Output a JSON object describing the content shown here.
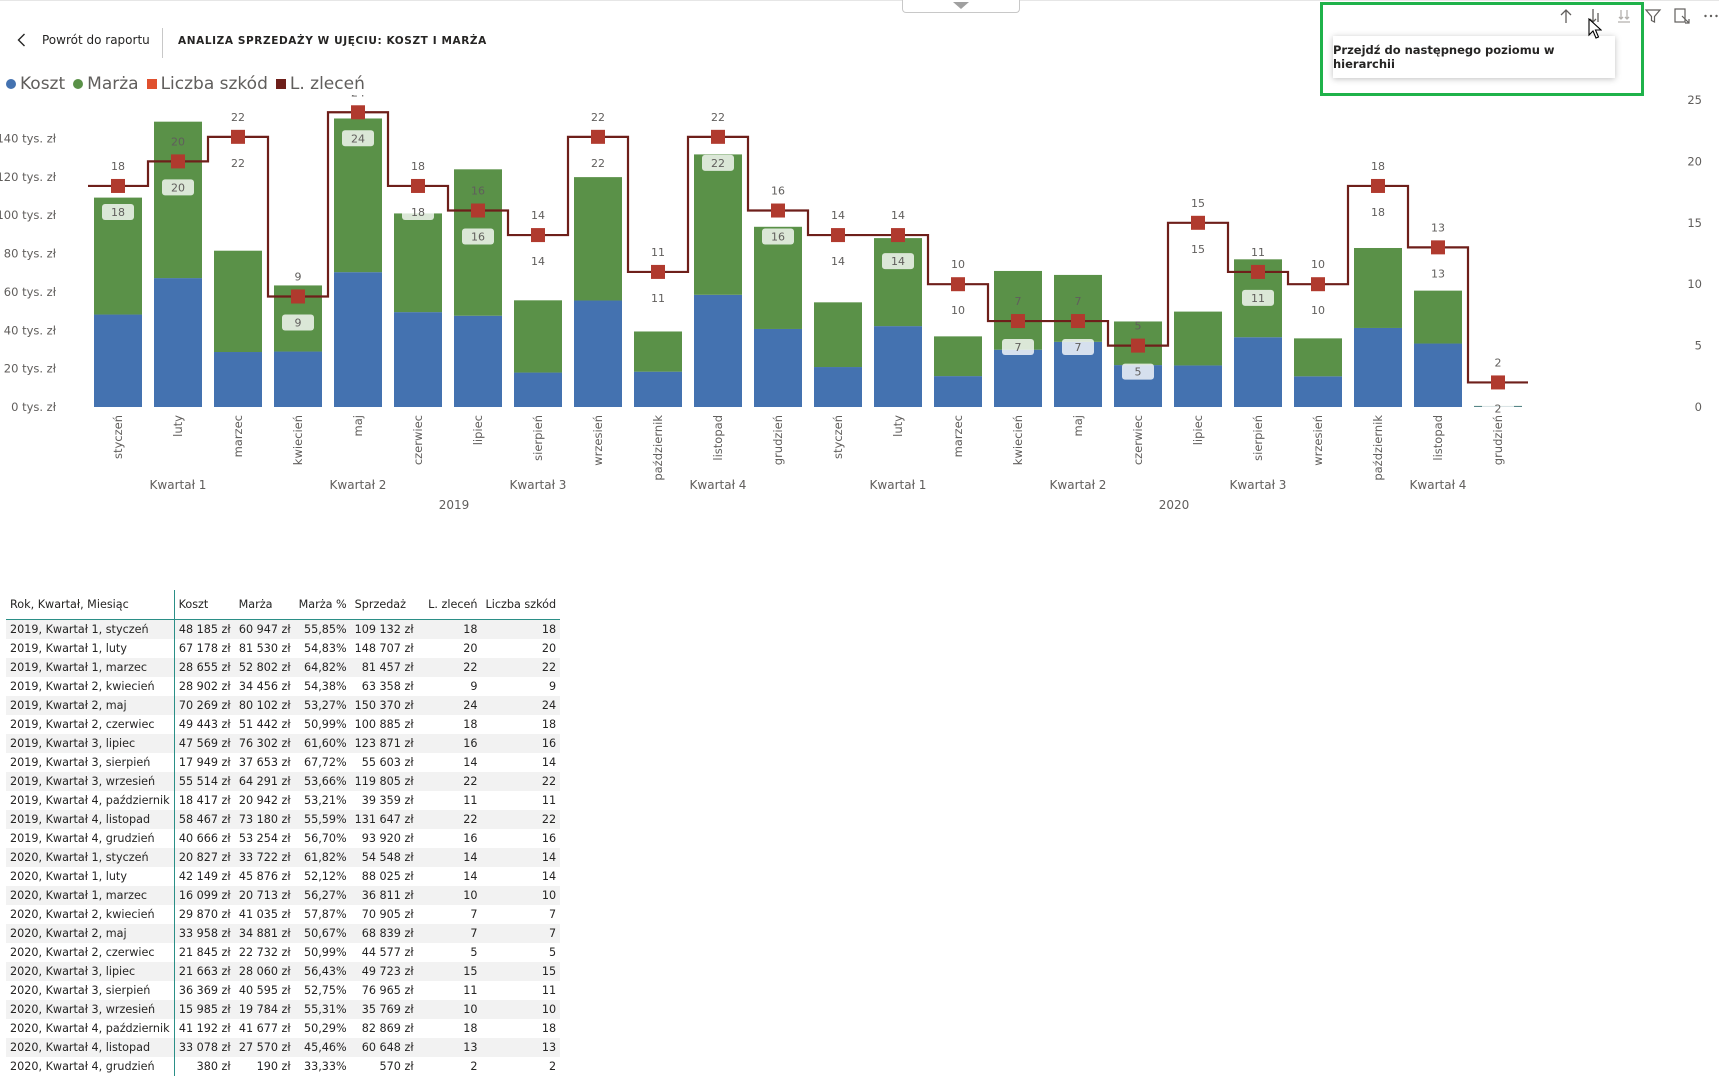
{
  "header": {
    "back_label": "Powrót do raportu",
    "title": "ANALIZA SPRZEDAŻY W UJĘCIU: KOSZT I MARŻA"
  },
  "legend": [
    {
      "label": "Koszt",
      "color": "#4472b0",
      "shape": "circle"
    },
    {
      "label": "Marża",
      "color": "#5a9148",
      "shape": "circle"
    },
    {
      "label": "Liczba szkód",
      "color": "#e0502e",
      "shape": "square"
    },
    {
      "label": "L. zleceń",
      "color": "#6e1f1a",
      "shape": "square"
    }
  ],
  "visual_header": {
    "tooltip": "Przejdź do następnego poziomu w hierarchii",
    "icons": [
      "drill-up-icon",
      "drill-down-icon",
      "expand-hierarchy-icon",
      "filter-icon",
      "focus-mode-icon",
      "more-options-icon"
    ]
  },
  "chart_data": {
    "type": "bar",
    "stacked": true,
    "categories": [
      "styczeń",
      "luty",
      "marzec",
      "kwiecień",
      "maj",
      "czerwiec",
      "lipiec",
      "sierpień",
      "wrzesień",
      "październik",
      "listopad",
      "grudzień",
      "styczeń",
      "luty",
      "marzec",
      "kwiecień",
      "maj",
      "czerwiec",
      "lipiec",
      "sierpień",
      "wrzesień",
      "październik",
      "listopad",
      "grudzień"
    ],
    "quarter_labels": [
      "Kwartał 1",
      "Kwartał 2",
      "Kwartał 3",
      "Kwartał 4",
      "Kwartał 1",
      "Kwartał 2",
      "Kwartał 3",
      "Kwartał 4"
    ],
    "year_labels": [
      "2019",
      "2020"
    ],
    "series": [
      {
        "name": "Koszt",
        "color": "#4472b0",
        "values": [
          48185,
          67178,
          28655,
          28902,
          70269,
          49443,
          47569,
          17949,
          55514,
          18417,
          58467,
          40666,
          20827,
          42149,
          16099,
          29870,
          33958,
          21845,
          21663,
          36369,
          15985,
          41192,
          33078,
          380
        ]
      },
      {
        "name": "Marża",
        "color": "#5a9148",
        "values": [
          60947,
          81530,
          52802,
          34456,
          80102,
          51442,
          76302,
          37653,
          64291,
          20942,
          73180,
          53254,
          33722,
          45876,
          20713,
          41035,
          34881,
          22732,
          28060,
          40595,
          19784,
          41677,
          27570,
          190
        ]
      },
      {
        "name": "L. zleceń",
        "type": "step-line",
        "axis": "right",
        "color": "#6e1f1a",
        "marker_color": "#b03a2e",
        "values": [
          18,
          20,
          22,
          9,
          24,
          18,
          16,
          14,
          22,
          11,
          22,
          16,
          14,
          14,
          10,
          7,
          7,
          5,
          15,
          11,
          10,
          18,
          13,
          2
        ]
      },
      {
        "name": "Liczba szkód",
        "type": "labels",
        "axis": "right",
        "color": "#e0502e",
        "values": [
          18,
          20,
          22,
          9,
          24,
          18,
          16,
          14,
          22,
          11,
          22,
          16,
          14,
          14,
          10,
          7,
          7,
          5,
          15,
          11,
          10,
          18,
          13,
          2
        ]
      }
    ],
    "y_left_ticks": [
      "0 tys. zł",
      "20 tys. zł",
      "40 tys. zł",
      "60 tys. zł",
      "80 tys. zł",
      "100 tys. zł",
      "120 tys. zł",
      "140 tys. zł"
    ],
    "y_left_range": [
      0,
      160000
    ],
    "y_right_ticks": [
      "0",
      "5",
      "10",
      "15",
      "20",
      "25"
    ],
    "y_right_range": [
      0,
      25
    ],
    "grid": false,
    "legend_position": "top-left"
  },
  "table": {
    "columns": [
      "Rok, Kwartał, Miesiąc",
      "Koszt",
      "Marża",
      "Marża %",
      "Sprzedaż",
      "L. zleceń",
      "Liczba szkód"
    ],
    "rows": [
      [
        "2019, Kwartał 1, styczeń",
        "48 185 zł",
        "60 947 zł",
        "55,85%",
        "109 132 zł",
        "18",
        "18"
      ],
      [
        "2019, Kwartał 1, luty",
        "67 178 zł",
        "81 530 zł",
        "54,83%",
        "148 707 zł",
        "20",
        "20"
      ],
      [
        "2019, Kwartał 1, marzec",
        "28 655 zł",
        "52 802 zł",
        "64,82%",
        "81 457 zł",
        "22",
        "22"
      ],
      [
        "2019, Kwartał 2, kwiecień",
        "28 902 zł",
        "34 456 zł",
        "54,38%",
        "63 358 zł",
        "9",
        "9"
      ],
      [
        "2019, Kwartał 2, maj",
        "70 269 zł",
        "80 102 zł",
        "53,27%",
        "150 370 zł",
        "24",
        "24"
      ],
      [
        "2019, Kwartał 2, czerwiec",
        "49 443 zł",
        "51 442 zł",
        "50,99%",
        "100 885 zł",
        "18",
        "18"
      ],
      [
        "2019, Kwartał 3, lipiec",
        "47 569 zł",
        "76 302 zł",
        "61,60%",
        "123 871 zł",
        "16",
        "16"
      ],
      [
        "2019, Kwartał 3, sierpień",
        "17 949 zł",
        "37 653 zł",
        "67,72%",
        "55 603 zł",
        "14",
        "14"
      ],
      [
        "2019, Kwartał 3, wrzesień",
        "55 514 zł",
        "64 291 zł",
        "53,66%",
        "119 805 zł",
        "22",
        "22"
      ],
      [
        "2019, Kwartał 4, październik",
        "18 417 zł",
        "20 942 zł",
        "53,21%",
        "39 359 zł",
        "11",
        "11"
      ],
      [
        "2019, Kwartał 4, listopad",
        "58 467 zł",
        "73 180 zł",
        "55,59%",
        "131 647 zł",
        "22",
        "22"
      ],
      [
        "2019, Kwartał 4, grudzień",
        "40 666 zł",
        "53 254 zł",
        "56,70%",
        "93 920 zł",
        "16",
        "16"
      ],
      [
        "2020, Kwartał 1, styczeń",
        "20 827 zł",
        "33 722 zł",
        "61,82%",
        "54 548 zł",
        "14",
        "14"
      ],
      [
        "2020, Kwartał 1, luty",
        "42 149 zł",
        "45 876 zł",
        "52,12%",
        "88 025 zł",
        "14",
        "14"
      ],
      [
        "2020, Kwartał 1, marzec",
        "16 099 zł",
        "20 713 zł",
        "56,27%",
        "36 811 zł",
        "10",
        "10"
      ],
      [
        "2020, Kwartał 2, kwiecień",
        "29 870 zł",
        "41 035 zł",
        "57,87%",
        "70 905 zł",
        "7",
        "7"
      ],
      [
        "2020, Kwartał 2, maj",
        "33 958 zł",
        "34 881 zł",
        "50,67%",
        "68 839 zł",
        "7",
        "7"
      ],
      [
        "2020, Kwartał 2, czerwiec",
        "21 845 zł",
        "22 732 zł",
        "50,99%",
        "44 577 zł",
        "5",
        "5"
      ],
      [
        "2020, Kwartał 3, lipiec",
        "21 663 zł",
        "28 060 zł",
        "56,43%",
        "49 723 zł",
        "15",
        "15"
      ],
      [
        "2020, Kwartał 3, sierpień",
        "36 369 zł",
        "40 595 zł",
        "52,75%",
        "76 965 zł",
        "11",
        "11"
      ],
      [
        "2020, Kwartał 3, wrzesień",
        "15 985 zł",
        "19 784 zł",
        "55,31%",
        "35 769 zł",
        "10",
        "10"
      ],
      [
        "2020, Kwartał 4, październik",
        "41 192 zł",
        "41 677 zł",
        "50,29%",
        "82 869 zł",
        "18",
        "18"
      ],
      [
        "2020, Kwartał 4, listopad",
        "33 078 zł",
        "27 570 zł",
        "45,46%",
        "60 648 zł",
        "13",
        "13"
      ],
      [
        "2020, Kwartał 4, grudzień",
        "380 zł",
        "190 zł",
        "33,33%",
        "570 zł",
        "2",
        "2"
      ]
    ]
  }
}
